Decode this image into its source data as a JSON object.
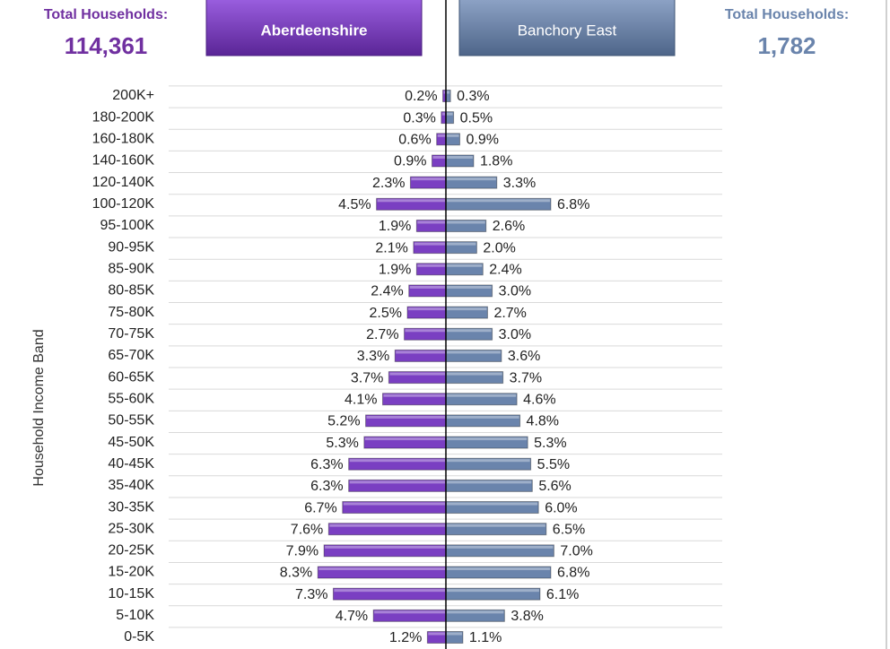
{
  "chart_data": {
    "type": "butterfly-bar",
    "y_axis_label": "Household Income Band",
    "left_total_label": "Total Households:",
    "left_total": "114,361",
    "right_total_label": "Total Households:",
    "right_total": "1,782",
    "categories": [
      "200K+",
      "180-200K",
      "160-180K",
      "140-160K",
      "120-140K",
      "100-120K",
      "95-100K",
      "90-95K",
      "85-90K",
      "80-85K",
      "75-80K",
      "70-75K",
      "65-70K",
      "60-65K",
      "55-60K",
      "50-55K",
      "45-50K",
      "40-45K",
      "35-40K",
      "30-35K",
      "25-30K",
      "20-25K",
      "15-20K",
      "10-15K",
      "5-10K",
      "0-5K"
    ],
    "series": [
      {
        "name": "Aberdeenshire",
        "color": "#7a3fc2",
        "side": "left",
        "values": [
          0.2,
          0.3,
          0.6,
          0.9,
          2.3,
          4.5,
          1.9,
          2.1,
          1.9,
          2.4,
          2.5,
          2.7,
          3.3,
          3.7,
          4.1,
          5.2,
          5.3,
          6.3,
          6.3,
          6.7,
          7.6,
          7.9,
          8.3,
          7.3,
          4.7,
          1.2
        ],
        "value_labels": [
          "0.2%",
          "0.3%",
          "0.6%",
          "0.9%",
          "2.3%",
          "4.5%",
          "1.9%",
          "2.1%",
          "1.9%",
          "2.4%",
          "2.5%",
          "2.7%",
          "3.3%",
          "3.7%",
          "4.1%",
          "5.2%",
          "5.3%",
          "6.3%",
          "6.3%",
          "6.7%",
          "7.6%",
          "7.9%",
          "8.3%",
          "7.3%",
          "4.7%",
          "1.2%"
        ]
      },
      {
        "name": "Banchory East",
        "color": "#6a84ac",
        "side": "right",
        "values": [
          0.3,
          0.5,
          0.9,
          1.8,
          3.3,
          6.8,
          2.6,
          2.0,
          2.4,
          3.0,
          2.7,
          3.0,
          3.6,
          3.7,
          4.6,
          4.8,
          5.3,
          5.5,
          5.6,
          6.0,
          6.5,
          7.0,
          6.8,
          6.1,
          3.8,
          1.1
        ],
        "value_labels": [
          "0.3%",
          "0.5%",
          "0.9%",
          "1.8%",
          "3.3%",
          "6.8%",
          "2.6%",
          "2.0%",
          "2.4%",
          "3.0%",
          "2.7%",
          "3.0%",
          "3.6%",
          "3.7%",
          "4.6%",
          "4.8%",
          "5.3%",
          "5.5%",
          "5.6%",
          "6.0%",
          "6.5%",
          "7.0%",
          "6.8%",
          "6.1%",
          "3.8%",
          "1.1%"
        ]
      }
    ]
  }
}
